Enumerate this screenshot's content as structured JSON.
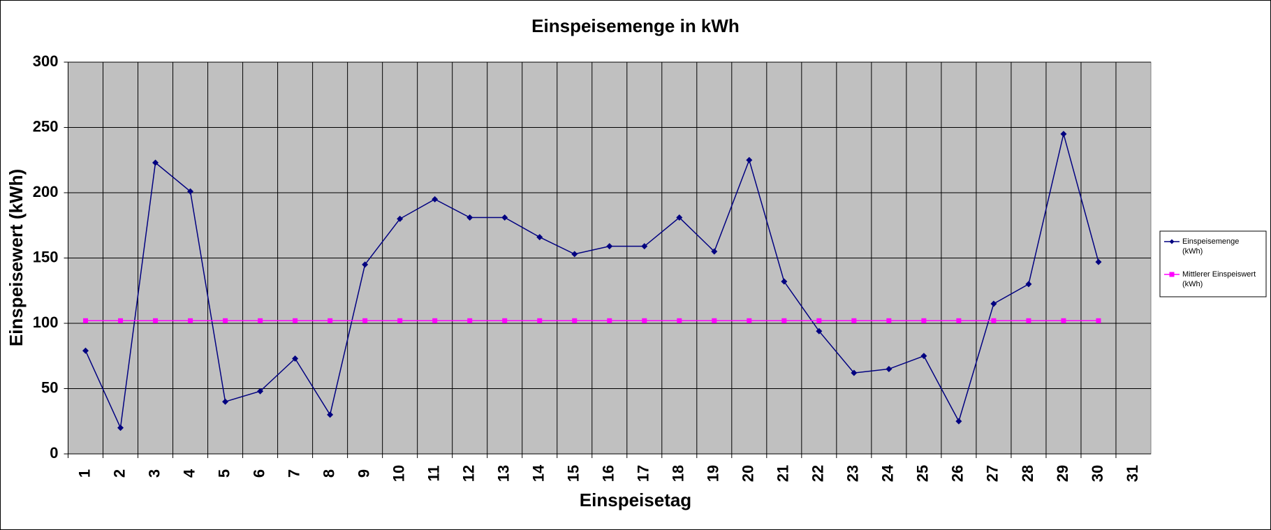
{
  "chart_data": {
    "type": "line",
    "title": "Einspeisemenge in kWh",
    "x_label": "Einspeisetag",
    "y_label": "Einspeisewert  (kWh)",
    "categories": [
      "1",
      "2",
      "3",
      "4",
      "5",
      "6",
      "7",
      "8",
      "9",
      "10",
      "11",
      "12",
      "13",
      "14",
      "15",
      "16",
      "17",
      "18",
      "19",
      "20",
      "21",
      "22",
      "23",
      "24",
      "25",
      "26",
      "27",
      "28",
      "29",
      "30",
      "31"
    ],
    "series": [
      {
        "name": "Einspeisemenge (kWh)",
        "color": "#000080",
        "marker": "diamond",
        "values": [
          79,
          20,
          223,
          201,
          40,
          48,
          73,
          30,
          145,
          180,
          195,
          181,
          181,
          166,
          153,
          159,
          159,
          181,
          155,
          225,
          132,
          94,
          62,
          65,
          75,
          25,
          115,
          130,
          245,
          147,
          null
        ]
      },
      {
        "name": "Mittlerer Einspeiswert (kWh)",
        "color": "#ff00ff",
        "marker": "square",
        "values": [
          102,
          102,
          102,
          102,
          102,
          102,
          102,
          102,
          102,
          102,
          102,
          102,
          102,
          102,
          102,
          102,
          102,
          102,
          102,
          102,
          102,
          102,
          102,
          102,
          102,
          102,
          102,
          102,
          102,
          102,
          null
        ]
      }
    ],
    "ylim": [
      0,
      300
    ],
    "yticks": [
      0,
      50,
      100,
      150,
      200,
      250,
      300
    ],
    "grid": true,
    "legend": "right"
  }
}
